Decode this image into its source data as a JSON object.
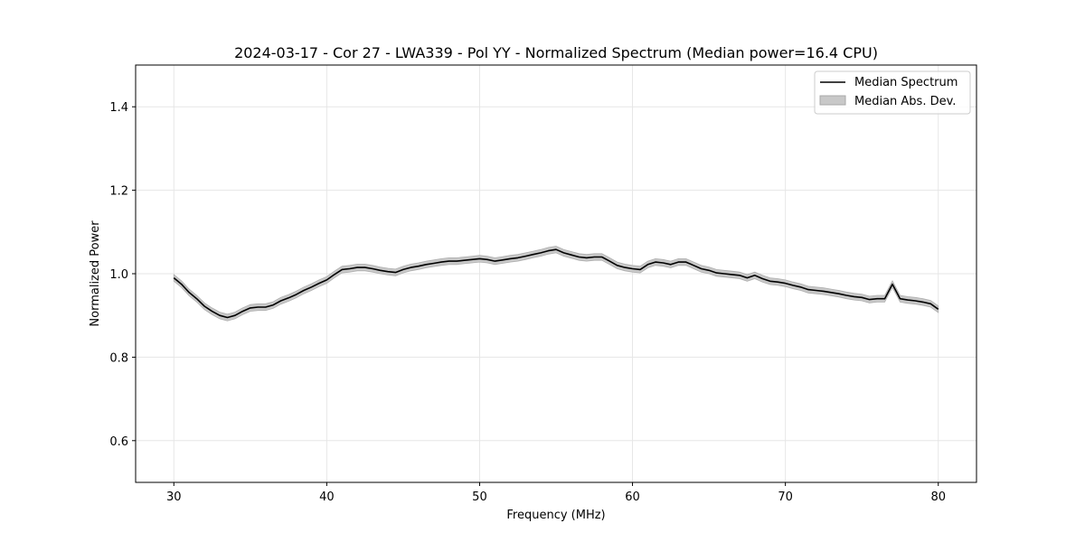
{
  "chart_data": {
    "type": "line",
    "title": "2024-03-17 - Cor 27 - LWA339 - Pol YY - Normalized Spectrum (Median power=16.4 CPU)",
    "xlabel": "Frequency (MHz)",
    "ylabel": "Normalized Power",
    "xlim": [
      27.5,
      82.5
    ],
    "ylim": [
      0.5,
      1.5
    ],
    "xticks": [
      30,
      40,
      50,
      60,
      70,
      80
    ],
    "yticks": [
      0.6,
      0.8,
      1.0,
      1.2,
      1.4
    ],
    "xtick_labels": [
      "30",
      "40",
      "50",
      "60",
      "70",
      "80"
    ],
    "ytick_labels": [
      "0.6",
      "0.8",
      "1.0",
      "1.2",
      "1.4"
    ],
    "grid": true,
    "legend_position": "top-right",
    "legend": [
      "Median Spectrum",
      "Median Abs. Dev."
    ],
    "series": [
      {
        "name": "Median Spectrum",
        "color": "#000000",
        "x": [
          30,
          30.5,
          31,
          31.5,
          32,
          32.5,
          33,
          33.5,
          34,
          34.5,
          35,
          35.5,
          36,
          36.5,
          37,
          37.5,
          38,
          38.5,
          39,
          39.5,
          40,
          40.5,
          41,
          41.5,
          42,
          42.5,
          43,
          43.5,
          44,
          44.5,
          45,
          45.5,
          46,
          46.5,
          47,
          47.5,
          48,
          48.5,
          49,
          49.5,
          50,
          50.5,
          51,
          51.5,
          52,
          52.5,
          53,
          53.5,
          54,
          54.5,
          55,
          55.5,
          56,
          56.5,
          57,
          57.5,
          58,
          58.5,
          59,
          59.5,
          60,
          60.5,
          61,
          61.5,
          62,
          62.5,
          63,
          63.5,
          64,
          64.5,
          65,
          65.5,
          66,
          66.5,
          67,
          67.5,
          68,
          68.5,
          69,
          69.5,
          70,
          70.5,
          71,
          71.5,
          72,
          72.5,
          73,
          73.5,
          74,
          74.5,
          75,
          75.5,
          76,
          76.5,
          77,
          77.5,
          78,
          78.5,
          79,
          79.5,
          80
        ],
        "values": [
          0.99,
          0.975,
          0.955,
          0.94,
          0.922,
          0.91,
          0.9,
          0.895,
          0.9,
          0.91,
          0.918,
          0.92,
          0.92,
          0.925,
          0.935,
          0.942,
          0.95,
          0.96,
          0.968,
          0.977,
          0.985,
          0.998,
          1.01,
          1.012,
          1.015,
          1.015,
          1.012,
          1.008,
          1.005,
          1.003,
          1.01,
          1.015,
          1.018,
          1.022,
          1.025,
          1.028,
          1.03,
          1.03,
          1.032,
          1.034,
          1.036,
          1.034,
          1.03,
          1.033,
          1.036,
          1.038,
          1.042,
          1.046,
          1.05,
          1.055,
          1.058,
          1.05,
          1.045,
          1.04,
          1.038,
          1.04,
          1.04,
          1.03,
          1.02,
          1.015,
          1.012,
          1.01,
          1.022,
          1.028,
          1.026,
          1.022,
          1.028,
          1.028,
          1.02,
          1.012,
          1.008,
          1.002,
          1.0,
          0.998,
          0.996,
          0.99,
          0.996,
          0.988,
          0.982,
          0.98,
          0.977,
          0.972,
          0.968,
          0.962,
          0.96,
          0.958,
          0.955,
          0.952,
          0.948,
          0.945,
          0.943,
          0.938,
          0.94,
          0.94,
          0.975,
          0.94,
          0.937,
          0.935,
          0.932,
          0.928,
          0.915
        ]
      },
      {
        "name": "Median Abs. Dev.",
        "color": "#c8c8c8",
        "deviation": 0.008
      }
    ]
  }
}
